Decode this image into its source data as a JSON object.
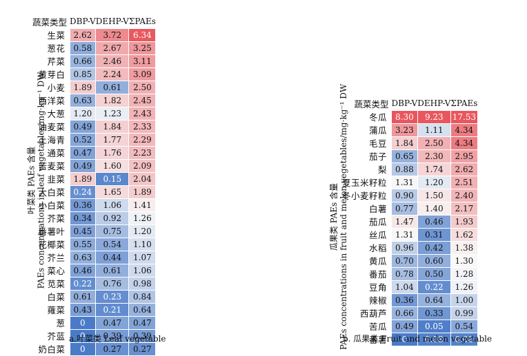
{
  "panel_a": {
    "ylabel_cn": "叶菜类 PAEs 含量",
    "ylabel_en": "PAEs concentrations in leaf vegetables/mg·kg⁻¹ DW",
    "caption": "a.叶菜类 Leaf vegetable"
  },
  "panel_b": {
    "ylabel_cn": "瓜果类 PAEs 含量",
    "ylabel_en": "PAEs concentrations in fruit and melon vegetables/mg·kg⁻¹ DW",
    "caption": "b. 瓜果类 Fruit and melon vegetable"
  },
  "chart_data": [
    {
      "type": "heatmap",
      "corner_label": "蔬菜类型",
      "columns": [
        "DBP-V",
        "DEHP-V",
        "ΣPAEs"
      ],
      "rows": [
        "生菜",
        "葱花",
        "芹菜",
        "黄芽白",
        "小麦",
        "西洋菜",
        "大葱",
        "油麦菜",
        "上海青",
        "通菜",
        "苦麦菜",
        "韭菜",
        "大白菜",
        "小白菜",
        "芥菜",
        "番薯叶",
        "花椰菜",
        "芥兰",
        "菜心",
        "苋菜",
        "白菜",
        "蕹菜",
        "葱",
        "芥蓝",
        "奶白菜"
      ],
      "values": [
        [
          2.62,
          3.72,
          6.34
        ],
        [
          0.58,
          2.67,
          3.25
        ],
        [
          0.66,
          2.46,
          3.11
        ],
        [
          0.85,
          2.24,
          3.09
        ],
        [
          1.89,
          0.61,
          2.5
        ],
        [
          0.63,
          1.82,
          2.45
        ],
        [
          1.2,
          1.23,
          2.43
        ],
        [
          0.49,
          1.84,
          2.33
        ],
        [
          0.52,
          1.77,
          2.29
        ],
        [
          0.47,
          1.76,
          2.23
        ],
        [
          0.49,
          1.6,
          2.09
        ],
        [
          1.89,
          0.15,
          2.04
        ],
        [
          0.24,
          1.65,
          1.89
        ],
        [
          0.36,
          1.06,
          1.41
        ],
        [
          0.34,
          0.92,
          1.26
        ],
        [
          0.45,
          0.75,
          1.2
        ],
        [
          0.55,
          0.54,
          1.1
        ],
        [
          0.63,
          0.44,
          1.07
        ],
        [
          0.46,
          0.61,
          1.06
        ],
        [
          0.22,
          0.76,
          0.98
        ],
        [
          0.61,
          0.23,
          0.84
        ],
        [
          0.43,
          0.21,
          0.64
        ],
        [
          0,
          0.47,
          0.47
        ],
        [
          0,
          0.39,
          0.39
        ],
        [
          0,
          0.27,
          0.27
        ]
      ],
      "display": [
        [
          "2.62",
          "3.72",
          "6.34"
        ],
        [
          "0.58",
          "2.67",
          "3.25"
        ],
        [
          "0.66",
          "2.46",
          "3.11"
        ],
        [
          "0.85",
          "2.24",
          "3.09"
        ],
        [
          "1.89",
          "0.61",
          "2.50"
        ],
        [
          "0.63",
          "1.82",
          "2.45"
        ],
        [
          "1.20",
          "1.23",
          "2.43"
        ],
        [
          "0.49",
          "1.84",
          "2.33"
        ],
        [
          "0.52",
          "1.77",
          "2.29"
        ],
        [
          "0.47",
          "1.76",
          "2.23"
        ],
        [
          "0.49",
          "1.60",
          "2.09"
        ],
        [
          "1.89",
          "0.15",
          "2.04"
        ],
        [
          "0.24",
          "1.65",
          "1.89"
        ],
        [
          "0.36",
          "1.06",
          "1.41"
        ],
        [
          "0.34",
          "0.92",
          "1.26"
        ],
        [
          "0.45",
          "0.75",
          "1.20"
        ],
        [
          "0.55",
          "0.54",
          "1.10"
        ],
        [
          "0.63",
          "0.44",
          "1.07"
        ],
        [
          "0.46",
          "0.61",
          "1.06"
        ],
        [
          "0.22",
          "0.76",
          "0.98"
        ],
        [
          "0.61",
          "0.23",
          "0.84"
        ],
        [
          "0.43",
          "0.21",
          "0.64"
        ],
        [
          "0",
          "0.47",
          "0.47"
        ],
        [
          "0",
          "0.39",
          "0.39"
        ],
        [
          "0",
          "0.27",
          "0.27"
        ]
      ],
      "color_low": "#4a7bc8",
      "color_mid": "#f8f8f8",
      "color_high": "#e8575e",
      "color_mid_value": 1.3
    },
    {
      "type": "heatmap",
      "corner_label": "蔬菜类型",
      "columns": [
        "DBP-V",
        "DEHP-V",
        "ΣPAEs"
      ],
      "rows": [
        "冬瓜",
        "蒲瓜",
        "毛豆",
        "茄子",
        "梨",
        "夏玉米籽粒",
        "冬小麦籽粒",
        "白薯",
        "茄瓜",
        "丝瓜",
        "水稻",
        "黄瓜",
        "番茄",
        "豆角",
        "辣椒",
        "西葫芦",
        "苦瓜",
        "番薯"
      ],
      "values": [
        [
          8.3,
          9.23,
          17.53
        ],
        [
          3.23,
          1.11,
          4.34
        ],
        [
          1.84,
          2.5,
          4.34
        ],
        [
          0.65,
          2.3,
          2.95
        ],
        [
          0.88,
          1.74,
          2.62
        ],
        [
          1.31,
          1.2,
          2.51
        ],
        [
          0.9,
          1.5,
          2.4
        ],
        [
          0.77,
          1.4,
          2.17
        ],
        [
          1.47,
          0.46,
          1.93
        ],
        [
          1.31,
          0.31,
          1.62
        ],
        [
          0.96,
          0.42,
          1.38
        ],
        [
          0.7,
          0.6,
          1.3
        ],
        [
          0.78,
          0.5,
          1.28
        ],
        [
          1.04,
          0.22,
          1.26
        ],
        [
          0.36,
          0.64,
          1.0
        ],
        [
          0.66,
          0.33,
          0.99
        ],
        [
          0.49,
          0.05,
          0.54
        ],
        [
          0,
          0.08,
          0.08
        ]
      ],
      "display": [
        [
          "8.30",
          "9.23",
          "17.53"
        ],
        [
          "3.23",
          "1.11",
          "4.34"
        ],
        [
          "1.84",
          "2.50",
          "4.34"
        ],
        [
          "0.65",
          "2.30",
          "2.95"
        ],
        [
          "0.88",
          "1.74",
          "2.62"
        ],
        [
          "1.31",
          "1.20",
          "2.51"
        ],
        [
          "0.90",
          "1.50",
          "2.40"
        ],
        [
          "0.77",
          "1.40",
          "2.17"
        ],
        [
          "1.47",
          "0.46",
          "1.93"
        ],
        [
          "1.31",
          "0.31",
          "1.62"
        ],
        [
          "0.96",
          "0.42",
          "1.38"
        ],
        [
          "0.70",
          "0.60",
          "1.30"
        ],
        [
          "0.78",
          "0.50",
          "1.28"
        ],
        [
          "1.04",
          "0.22",
          "1.26"
        ],
        [
          "0.36",
          "0.64",
          "1.00"
        ],
        [
          "0.66",
          "0.33",
          "0.99"
        ],
        [
          "0.49",
          "0.05",
          "0.54"
        ],
        [
          "0",
          "0.08",
          "0.08"
        ]
      ],
      "color_low": "#4a7bc8",
      "color_mid": "#f8f8f8",
      "color_high": "#e8575e",
      "color_mid_value": 1.3
    }
  ]
}
